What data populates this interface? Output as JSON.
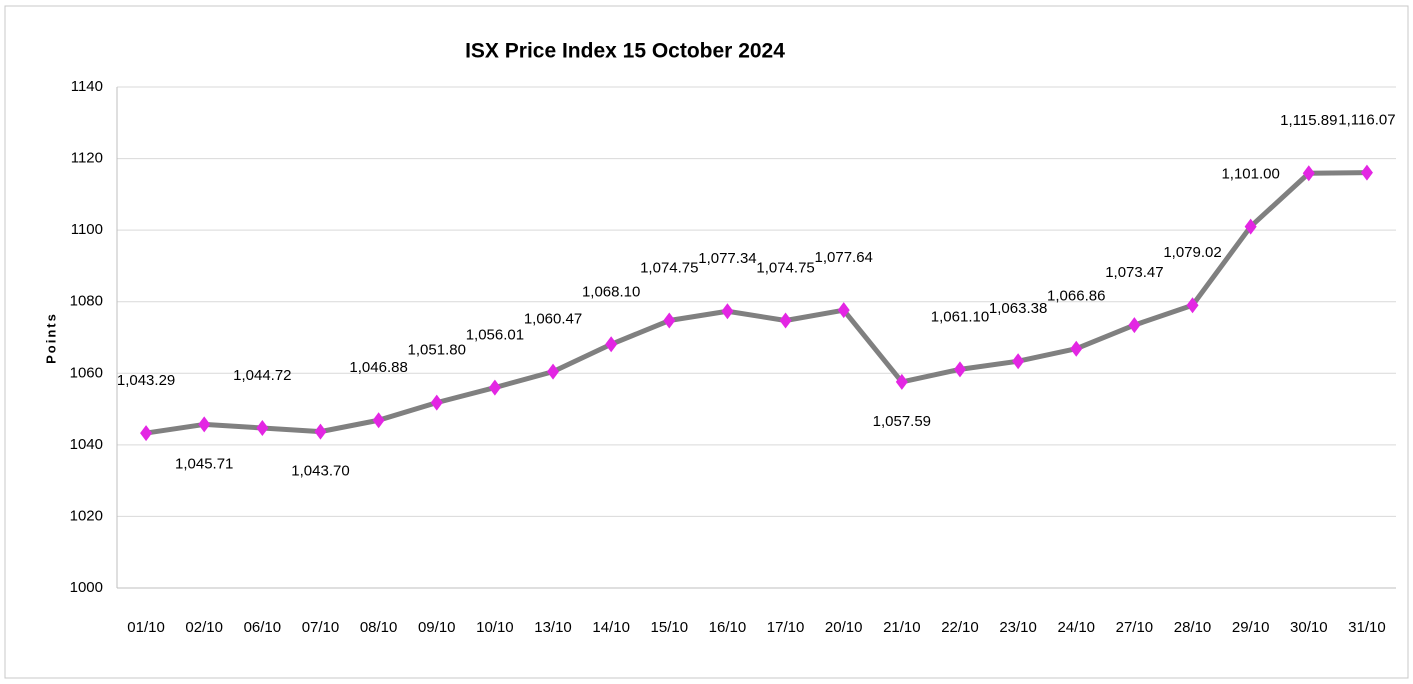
{
  "chart_data": {
    "type": "line",
    "title": "ISX Price Index 15  October 2024",
    "y_label": "Points",
    "categories": [
      "01/10",
      "02/10",
      "06/10",
      "07/10",
      "08/10",
      "09/10",
      "10/10",
      "13/10",
      "14/10",
      "15/10",
      "16/10",
      "17/10",
      "20/10",
      "21/10",
      "22/10",
      "23/10",
      "24/10",
      "27/10",
      "28/10",
      "29/10",
      "30/10",
      "31/10"
    ],
    "values": [
      1043.29,
      1045.71,
      1044.72,
      1043.7,
      1046.88,
      1051.8,
      1056.01,
      1060.47,
      1068.1,
      1074.75,
      1077.34,
      1074.75,
      1077.64,
      1057.59,
      1061.1,
      1063.38,
      1066.86,
      1073.47,
      1079.02,
      1101.0,
      1115.89,
      1116.07
    ],
    "value_labels": [
      "1,043.29",
      "1,045.71",
      "1,044.72",
      "1,043.70",
      "1,046.88",
      "1,051.80",
      "1,056.01",
      "1,060.47",
      "1,068.10",
      "1,074.75",
      "1,077.34",
      "1,074.75",
      "1,077.64",
      "1,057.59",
      "1,061.10",
      "1,063.38",
      "1,066.86",
      "1,073.47",
      "1,079.02",
      "1,101.00",
      "1,115.89",
      "1,116.07"
    ],
    "color": "#808080",
    "marker_color": "#e326e3",
    "ylim": [
      1000,
      1140
    ],
    "yticks": [
      1000,
      1020,
      1040,
      1060,
      1080,
      1100,
      1120,
      1140
    ],
    "grid": true
  }
}
